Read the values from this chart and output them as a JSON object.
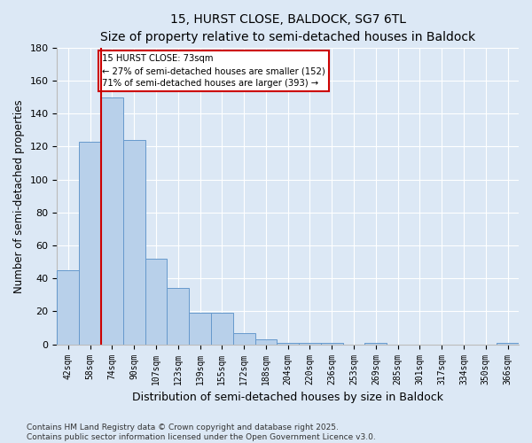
{
  "title": "15, HURST CLOSE, BALDOCK, SG7 6TL",
  "subtitle": "Size of property relative to semi-detached houses in Baldock",
  "xlabel": "Distribution of semi-detached houses by size in Baldock",
  "ylabel": "Number of semi-detached properties",
  "bar_values": [
    45,
    123,
    150,
    124,
    52,
    34,
    19,
    19,
    7,
    3,
    1,
    1,
    1,
    0,
    1,
    0,
    0,
    0,
    0,
    0,
    1
  ],
  "categories": [
    "42sqm",
    "58sqm",
    "74sqm",
    "90sqm",
    "107sqm",
    "123sqm",
    "139sqm",
    "155sqm",
    "172sqm",
    "188sqm",
    "204sqm",
    "220sqm",
    "236sqm",
    "253sqm",
    "269sqm",
    "285sqm",
    "301sqm",
    "317sqm",
    "334sqm",
    "350sqm",
    "366sqm"
  ],
  "bar_color": "#b8d0ea",
  "bar_edge_color": "#6699cc",
  "vline_index": 2,
  "vline_color": "#cc0000",
  "annotation_text": "15 HURST CLOSE: 73sqm\n← 27% of semi-detached houses are smaller (152)\n71% of semi-detached houses are larger (393) →",
  "annotation_box_color": "#cc0000",
  "ylim": [
    0,
    180
  ],
  "yticks": [
    0,
    20,
    40,
    60,
    80,
    100,
    120,
    140,
    160,
    180
  ],
  "background_color": "#dce8f5",
  "grid_color": "#ffffff",
  "title_fontsize": 10,
  "subtitle_fontsize": 9,
  "footer": "Contains HM Land Registry data © Crown copyright and database right 2025.\nContains public sector information licensed under the Open Government Licence v3.0."
}
